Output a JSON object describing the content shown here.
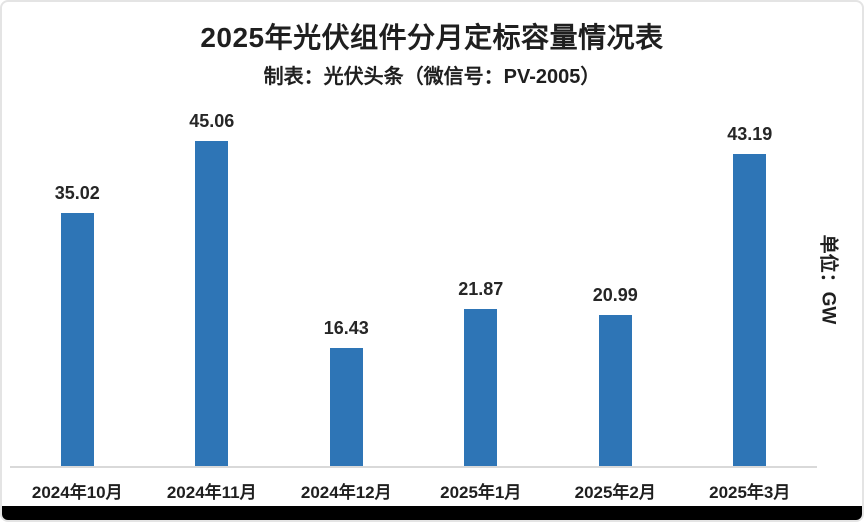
{
  "chart": {
    "title": "2025年光伏组件分月定标容量情况表",
    "subtitle": "制表：光伏头条（微信号：PV-2005）",
    "unit_label": "单位：GW"
  },
  "chart_data": {
    "type": "bar",
    "title": "2025年光伏组件分月定标容量情况表",
    "subtitle": "制表：光伏头条（微信号：PV-2005）",
    "categories": [
      "2024年10月",
      "2024年11月",
      "2024年12月",
      "2025年1月",
      "2025年2月",
      "2025年3月"
    ],
    "values": [
      35.02,
      45.06,
      16.43,
      21.87,
      20.99,
      43.19
    ],
    "xlabel": "",
    "ylabel": "单位：GW",
    "ylim": [
      0,
      50
    ],
    "grid": false,
    "legend": "none",
    "data_labels": true,
    "bar_color": "#2E75B6"
  },
  "colors": {
    "bar": "#2E75B6",
    "text": "#1f1f1f",
    "axis_line": "#d9d9d9",
    "card_border": "#e4e4e4",
    "bottom_strip": "#000000",
    "background": "#ffffff"
  }
}
